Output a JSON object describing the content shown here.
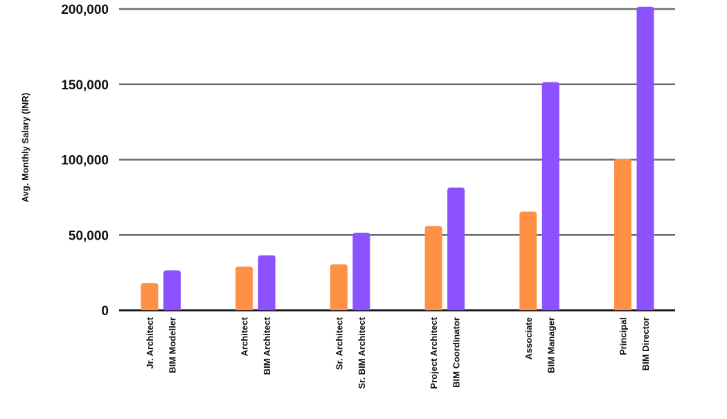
{
  "chart_data": {
    "type": "bar",
    "ylabel": "Avg. Monthly Salary (INR)",
    "ylim": [
      0,
      200000
    ],
    "yticks": [
      0,
      50000,
      100000,
      150000,
      200000
    ],
    "ytick_labels": [
      "0",
      "50,000",
      "100,000",
      "150,000",
      "200,000"
    ],
    "grid": true,
    "bars": [
      {
        "label": "Jr. Architect",
        "value": 18000,
        "color": "#FF9147"
      },
      {
        "label": "BIM Modeller",
        "value": 26500,
        "color": "#8C52FF"
      },
      {
        "label": "Architect",
        "value": 29000,
        "color": "#FF9147"
      },
      {
        "label": "BIM Architect",
        "value": 36500,
        "color": "#8C52FF"
      },
      {
        "label": "Sr. Architect",
        "value": 30500,
        "color": "#FF9147"
      },
      {
        "label": "Sr. BIM Architect",
        "value": 51500,
        "color": "#8C52FF"
      },
      {
        "label": "Project Architect",
        "value": 56000,
        "color": "#FF9147"
      },
      {
        "label": "BIM Coordinator",
        "value": 81500,
        "color": "#8C52FF"
      },
      {
        "label": "Associate",
        "value": 65500,
        "color": "#FF9147"
      },
      {
        "label": "BIM Manager",
        "value": 151500,
        "color": "#8C52FF"
      },
      {
        "label": "Principal",
        "value": 100500,
        "color": "#FF9147"
      },
      {
        "label": "BIM Director",
        "value": 201500,
        "color": "#8C52FF"
      }
    ],
    "colors": {
      "grid": "#6b6b6b",
      "axis": "#1a1a1a"
    }
  }
}
